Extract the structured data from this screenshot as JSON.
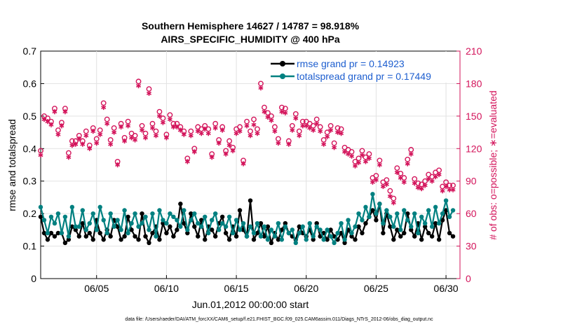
{
  "chart_data": {
    "type": "line",
    "title_line1": "Southern Hemisphere 14627 / 14787 = 98.918%",
    "title_line2": "AIRS_SPECIFIC_HUMIDITY @ 400 hPa",
    "xlabel": "Jun.01,2012 00:00:00 start",
    "ylabel_left": "rmse and totalspread",
    "ylabel_right": "# of obs: o=possible; ∗=evaluated",
    "xlim": [
      1,
      31
    ],
    "ylim_left": [
      0,
      0.7
    ],
    "ylim_right": [
      0,
      210
    ],
    "x_ticks": [
      5,
      10,
      15,
      20,
      25,
      30
    ],
    "x_tick_labels": [
      "06/05",
      "06/10",
      "06/15",
      "06/20",
      "06/25",
      "06/30"
    ],
    "y_ticks_left": [
      "0",
      "0.1",
      "0.2",
      "0.3",
      "0.4",
      "0.5",
      "0.6",
      "0.7"
    ],
    "y_ticks_right": [
      "0",
      "30",
      "60",
      "90",
      "120",
      "150",
      "180",
      "210"
    ],
    "footnote": "data file: /Users/raeder/DAI/ATM_forcXX/CAM6_setup/f.e21.FHIST_BGC.f09_025.CAM6assim.011/Diags_NTrS_2012-06/obs_diag_output.nc",
    "legend": [
      {
        "name": "rmse grand pr = 0.14923",
        "color": "#000000"
      },
      {
        "name": "totalspread grand pr = 0.17449",
        "color": "#008080"
      }
    ],
    "series": [
      {
        "name": "rmse",
        "color": "#000000",
        "x": [
          1.0,
          1.25,
          1.5,
          1.75,
          2.0,
          2.25,
          2.5,
          2.75,
          3.0,
          3.25,
          3.5,
          3.75,
          4.0,
          4.25,
          4.5,
          4.75,
          5.0,
          5.25,
          5.5,
          5.75,
          6.0,
          6.25,
          6.5,
          6.75,
          7.0,
          7.25,
          7.5,
          7.75,
          8.0,
          8.25,
          8.5,
          8.75,
          9.0,
          9.25,
          9.5,
          9.75,
          10.0,
          10.25,
          10.5,
          10.75,
          11.0,
          11.25,
          11.5,
          11.75,
          12.0,
          12.25,
          12.5,
          12.75,
          13.0,
          13.25,
          13.5,
          13.75,
          14.0,
          14.25,
          14.5,
          14.75,
          15.0,
          15.25,
          15.5,
          15.75,
          16.0,
          16.25,
          16.5,
          16.75,
          17.0,
          17.25,
          17.5,
          17.75,
          18.0,
          18.25,
          18.5,
          18.75,
          19.0,
          19.25,
          19.5,
          19.75,
          20.0,
          20.25,
          20.5,
          20.75,
          21.0,
          21.25,
          21.5,
          21.75,
          22.0,
          22.25,
          22.5,
          22.75,
          23.0,
          23.25,
          23.5,
          23.75,
          24.0,
          24.25,
          24.5,
          24.75,
          25.0,
          25.25,
          25.5,
          25.75,
          26.0,
          26.25,
          26.5,
          26.75,
          27.0,
          27.25,
          27.5,
          27.75,
          28.0,
          28.25,
          28.5,
          28.75,
          29.0,
          29.25,
          29.5,
          29.75,
          30.0,
          30.25,
          30.5
        ],
        "y": [
          0.19,
          0.14,
          0.12,
          0.14,
          0.13,
          0.14,
          0.14,
          0.11,
          0.12,
          0.16,
          0.15,
          0.13,
          0.17,
          0.13,
          0.14,
          0.12,
          0.18,
          0.14,
          0.12,
          0.15,
          0.13,
          0.18,
          0.16,
          0.12,
          0.13,
          0.19,
          0.15,
          0.13,
          0.12,
          0.2,
          0.13,
          0.11,
          0.14,
          0.16,
          0.12,
          0.17,
          0.14,
          0.16,
          0.13,
          0.15,
          0.23,
          0.17,
          0.14,
          0.2,
          0.16,
          0.13,
          0.18,
          0.12,
          0.16,
          0.15,
          0.13,
          0.17,
          0.19,
          0.14,
          0.12,
          0.16,
          0.13,
          0.21,
          0.15,
          0.13,
          0.24,
          0.12,
          0.14,
          0.17,
          0.13,
          0.16,
          0.11,
          0.14,
          0.12,
          0.15,
          0.17,
          0.14,
          0.13,
          0.12,
          0.16,
          0.14,
          0.13,
          0.15,
          0.12,
          0.17,
          0.13,
          0.14,
          0.12,
          0.15,
          0.13,
          0.12,
          0.14,
          0.11,
          0.15,
          0.13,
          0.12,
          0.16,
          0.14,
          0.17,
          0.19,
          0.21,
          0.18,
          0.23,
          0.14,
          0.2,
          0.16,
          0.12,
          0.15,
          0.13,
          0.14,
          0.2,
          0.15,
          0.13,
          0.17,
          0.12,
          0.16,
          0.14,
          0.13,
          0.17,
          0.12,
          0.18,
          0.21,
          0.14,
          0.13
        ]
      },
      {
        "name": "totalspread",
        "color": "#008080",
        "x": [
          1.0,
          1.25,
          1.5,
          1.75,
          2.0,
          2.25,
          2.5,
          2.75,
          3.0,
          3.25,
          3.5,
          3.75,
          4.0,
          4.25,
          4.5,
          4.75,
          5.0,
          5.25,
          5.5,
          5.75,
          6.0,
          6.25,
          6.5,
          6.75,
          7.0,
          7.25,
          7.5,
          7.75,
          8.0,
          8.25,
          8.5,
          8.75,
          9.0,
          9.25,
          9.5,
          9.75,
          10.0,
          10.25,
          10.5,
          10.75,
          11.0,
          11.25,
          11.5,
          11.75,
          12.0,
          12.25,
          12.5,
          12.75,
          13.0,
          13.25,
          13.5,
          13.75,
          14.0,
          14.25,
          14.5,
          14.75,
          15.0,
          15.25,
          15.5,
          15.75,
          16.0,
          16.25,
          16.5,
          16.75,
          17.0,
          17.25,
          17.5,
          17.75,
          18.0,
          18.25,
          18.5,
          18.75,
          19.0,
          19.25,
          19.5,
          19.75,
          20.0,
          20.25,
          20.5,
          20.75,
          21.0,
          21.25,
          21.5,
          21.75,
          22.0,
          22.25,
          22.5,
          22.75,
          23.0,
          23.25,
          23.5,
          23.75,
          24.0,
          24.25,
          24.5,
          24.75,
          25.0,
          25.25,
          25.5,
          25.75,
          26.0,
          26.25,
          26.5,
          26.75,
          27.0,
          27.25,
          27.5,
          27.75,
          28.0,
          28.25,
          28.5,
          28.75,
          29.0,
          29.25,
          29.5,
          29.75,
          30.0,
          30.25,
          30.5
        ],
        "y": [
          0.22,
          0.18,
          0.14,
          0.19,
          0.17,
          0.2,
          0.14,
          0.19,
          0.13,
          0.22,
          0.16,
          0.16,
          0.21,
          0.15,
          0.17,
          0.2,
          0.15,
          0.22,
          0.18,
          0.14,
          0.2,
          0.16,
          0.18,
          0.15,
          0.21,
          0.14,
          0.17,
          0.2,
          0.16,
          0.17,
          0.19,
          0.15,
          0.2,
          0.13,
          0.21,
          0.18,
          0.17,
          0.2,
          0.19,
          0.18,
          0.16,
          0.21,
          0.15,
          0.18,
          0.2,
          0.17,
          0.16,
          0.19,
          0.14,
          0.18,
          0.2,
          0.15,
          0.17,
          0.16,
          0.19,
          0.14,
          0.18,
          0.15,
          0.17,
          0.13,
          0.16,
          0.14,
          0.17,
          0.13,
          0.16,
          0.12,
          0.15,
          0.13,
          0.17,
          0.12,
          0.16,
          0.14,
          0.15,
          0.11,
          0.14,
          0.16,
          0.12,
          0.17,
          0.13,
          0.16,
          0.15,
          0.12,
          0.15,
          0.13,
          0.11,
          0.14,
          0.17,
          0.12,
          0.18,
          0.14,
          0.16,
          0.2,
          0.18,
          0.22,
          0.19,
          0.26,
          0.2,
          0.23,
          0.17,
          0.21,
          0.19,
          0.16,
          0.2,
          0.15,
          0.21,
          0.18,
          0.16,
          0.2,
          0.14,
          0.19,
          0.17,
          0.21,
          0.16,
          0.22,
          0.17,
          0.2,
          0.24,
          0.19,
          0.21
        ]
      },
      {
        "name": "obs_possible",
        "color": "#d3135a",
        "marker": "circle",
        "x": [
          1.0,
          1.25,
          1.5,
          1.75,
          2.0,
          2.25,
          2.5,
          2.75,
          3.0,
          3.25,
          3.5,
          3.75,
          4.0,
          4.25,
          4.5,
          4.75,
          5.0,
          5.25,
          5.5,
          5.75,
          6.0,
          6.25,
          6.5,
          6.75,
          7.0,
          7.25,
          7.5,
          7.75,
          8.0,
          8.25,
          8.5,
          8.75,
          9.0,
          9.25,
          9.5,
          9.75,
          10.0,
          10.25,
          10.5,
          10.75,
          11.0,
          11.25,
          11.5,
          11.75,
          12.0,
          12.25,
          12.5,
          12.75,
          13.0,
          13.25,
          13.5,
          13.75,
          14.0,
          14.25,
          14.5,
          14.75,
          15.0,
          15.25,
          15.5,
          15.75,
          16.0,
          16.25,
          16.5,
          16.75,
          17.0,
          17.25,
          17.5,
          17.75,
          18.0,
          18.25,
          18.5,
          18.75,
          19.0,
          19.25,
          19.5,
          19.75,
          20.0,
          20.25,
          20.5,
          20.75,
          21.0,
          21.25,
          21.5,
          21.75,
          22.0,
          22.25,
          22.5,
          22.75,
          23.0,
          23.25,
          23.5,
          23.75,
          24.0,
          24.25,
          24.5,
          24.75,
          25.0,
          25.25,
          25.5,
          25.75,
          26.0,
          26.25,
          26.5,
          26.75,
          27.0,
          27.25,
          27.5,
          27.75,
          28.0,
          28.25,
          28.5,
          28.75,
          29.0,
          29.25,
          29.5,
          29.75,
          30.0,
          30.25,
          30.5
        ],
        "y": [
          118,
          150,
          148,
          145,
          157,
          137,
          144,
          157,
          116,
          127,
          127,
          132,
          127,
          136,
          123,
          139,
          129,
          137,
          162,
          147,
          128,
          139,
          108,
          143,
          130,
          145,
          134,
          132,
          182,
          141,
          134,
          175,
          143,
          136,
          154,
          148,
          133,
          151,
          143,
          143,
          140,
          136,
          111,
          136,
          120,
          140,
          138,
          141,
          138,
          115,
          143,
          128,
          140,
          118,
          127,
          121,
          138,
          140,
          109,
          145,
          136,
          147,
          138,
          180,
          158,
          153,
          150,
          140,
          129,
          158,
          157,
          127,
          141,
          152,
          136,
          145,
          145,
          143,
          141,
          147,
          140,
          128,
          135,
          141,
          125,
          139,
          138,
          121,
          119,
          117,
          108,
          111,
          118,
          112,
          115,
          93,
          95,
          109,
          89,
          91,
          81,
          74,
          102,
          97,
          93,
          110,
          119,
          92,
          88,
          87,
          90,
          96,
          94,
          98,
          100,
          85,
          89,
          86,
          86
        ]
      },
      {
        "name": "obs_evaluated",
        "color": "#d3135a",
        "marker": "asterisk",
        "x": [
          1.0,
          1.25,
          1.5,
          1.75,
          2.0,
          2.25,
          2.5,
          2.75,
          3.0,
          3.25,
          3.5,
          3.75,
          4.0,
          4.25,
          4.5,
          4.75,
          5.0,
          5.25,
          5.5,
          5.75,
          6.0,
          6.25,
          6.5,
          6.75,
          7.0,
          7.25,
          7.5,
          7.75,
          8.0,
          8.25,
          8.5,
          8.75,
          9.0,
          9.25,
          9.5,
          9.75,
          10.0,
          10.25,
          10.5,
          10.75,
          11.0,
          11.25,
          11.5,
          11.75,
          12.0,
          12.25,
          12.5,
          12.75,
          13.0,
          13.25,
          13.5,
          13.75,
          14.0,
          14.25,
          14.5,
          14.75,
          15.0,
          15.25,
          15.5,
          15.75,
          16.0,
          16.25,
          16.5,
          16.75,
          17.0,
          17.25,
          17.5,
          17.75,
          18.0,
          18.25,
          18.5,
          18.75,
          19.0,
          19.25,
          19.5,
          19.75,
          20.0,
          20.25,
          20.5,
          20.75,
          21.0,
          21.25,
          21.5,
          21.75,
          22.0,
          22.25,
          22.5,
          22.75,
          23.0,
          23.25,
          23.5,
          23.75,
          24.0,
          24.25,
          24.5,
          24.75,
          25.0,
          25.25,
          25.5,
          25.75,
          26.0,
          26.25,
          26.5,
          26.75,
          27.0,
          27.25,
          27.5,
          27.75,
          28.0,
          28.25,
          28.5,
          28.75,
          29.0,
          29.25,
          29.5,
          29.75,
          30.0,
          30.25,
          30.5
        ],
        "y": [
          114,
          147,
          145,
          142,
          154,
          133,
          141,
          154,
          112,
          123,
          124,
          129,
          124,
          132,
          120,
          136,
          125,
          133,
          158,
          143,
          124,
          135,
          105,
          140,
          127,
          141,
          130,
          128,
          178,
          137,
          130,
          171,
          139,
          132,
          150,
          144,
          130,
          147,
          140,
          140,
          137,
          133,
          108,
          132,
          117,
          136,
          134,
          138,
          134,
          112,
          139,
          125,
          137,
          115,
          123,
          118,
          134,
          136,
          106,
          141,
          132,
          142,
          134,
          176,
          154,
          149,
          146,
          136,
          125,
          154,
          153,
          124,
          137,
          148,
          132,
          141,
          141,
          139,
          137,
          143,
          136,
          124,
          131,
          137,
          121,
          135,
          134,
          117,
          115,
          113,
          104,
          107,
          114,
          108,
          111,
          89,
          91,
          105,
          85,
          87,
          76,
          70,
          98,
          93,
          89,
          106,
          115,
          88,
          84,
          83,
          86,
          92,
          90,
          94,
          96,
          81,
          85,
          82,
          82
        ]
      }
    ]
  }
}
